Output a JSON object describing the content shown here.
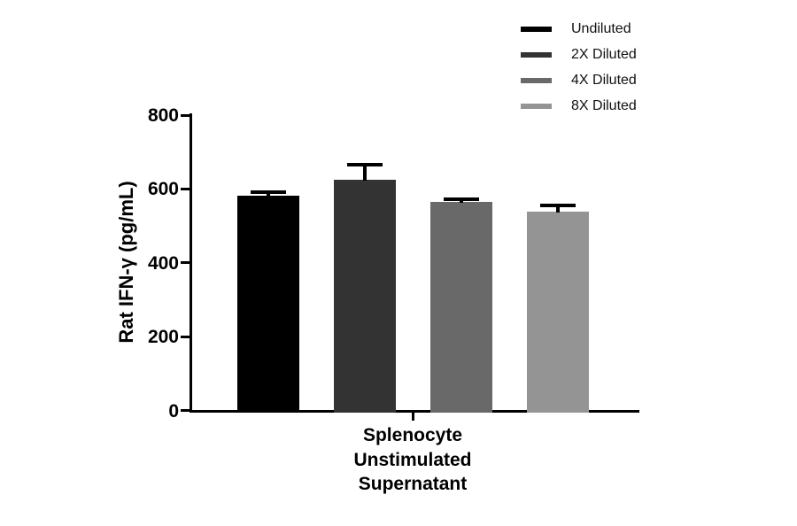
{
  "chart_data": {
    "type": "bar",
    "title": "",
    "ylabel": "Rat IFN-γ (pg/mL)",
    "xlabel": "",
    "ylim": [
      0,
      800
    ],
    "yticks": [
      0,
      200,
      400,
      600,
      800
    ],
    "categories": [
      "Splenocyte Unstimulated Supernatant"
    ],
    "x_label_lines": [
      "Splenocyte",
      "Unstimulated",
      "Supernatant"
    ],
    "grid": false,
    "error_bars": true,
    "error_color": "#000000",
    "legend_position": "top-right",
    "series": [
      {
        "name": "Undiluted",
        "value": 582,
        "error": 9,
        "color": "#000000"
      },
      {
        "name": "2X Diluted",
        "value": 625,
        "error": 41,
        "color": "#333333"
      },
      {
        "name": "4X Diluted",
        "value": 565,
        "error": 7,
        "color": "#696969"
      },
      {
        "name": "8X Diluted",
        "value": 538,
        "error": 17,
        "color": "#949494"
      }
    ]
  }
}
